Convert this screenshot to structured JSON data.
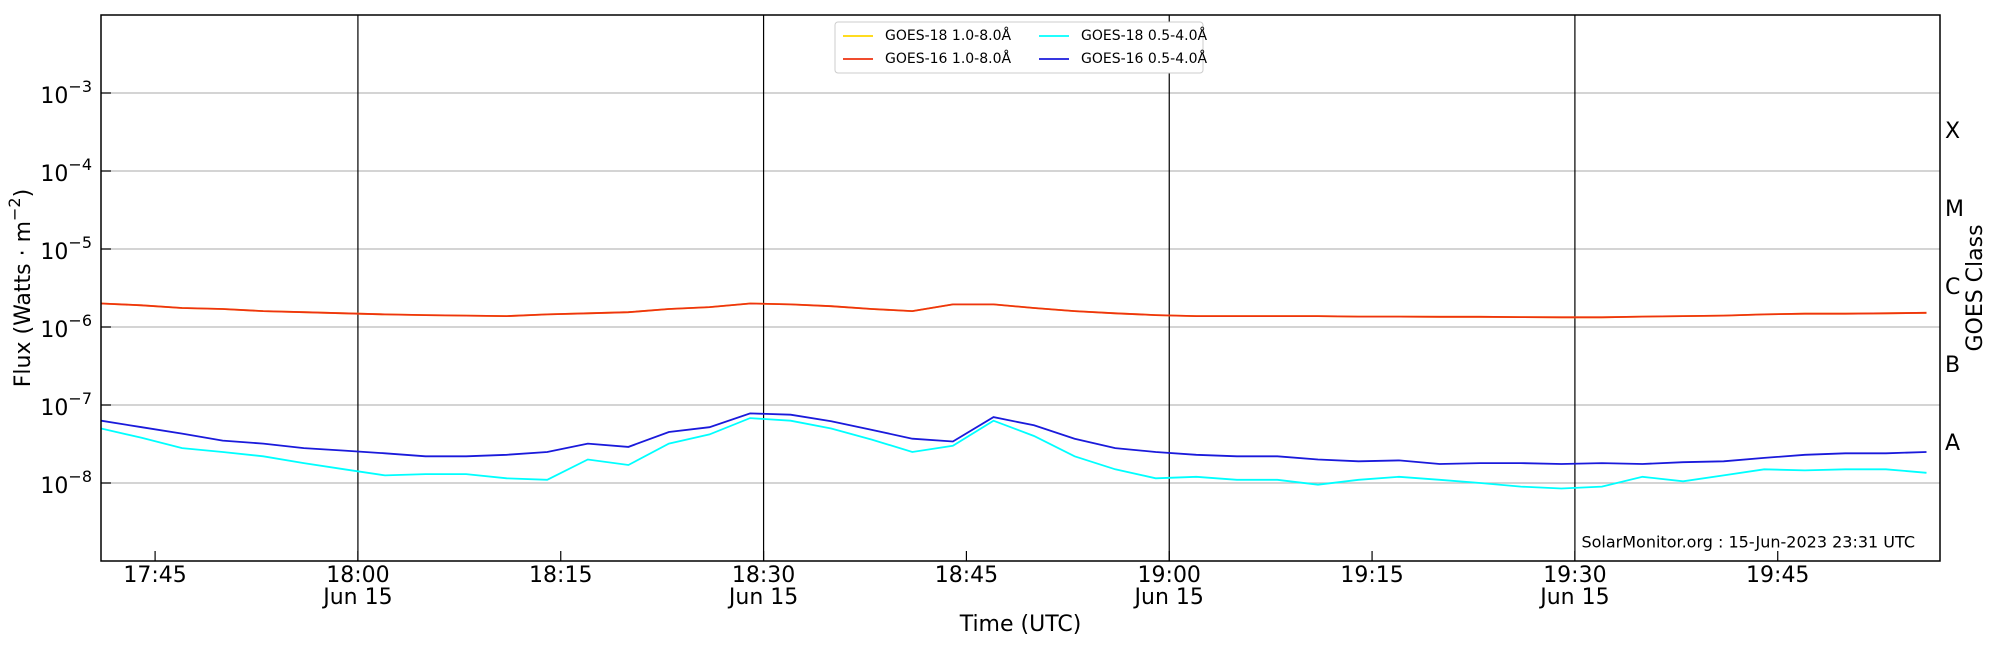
{
  "chart_data": {
    "type": "line",
    "log_y": true,
    "ylabel": {
      "text": "Flux (Watts · m",
      "exponent": "−2",
      "end": ")"
    },
    "xlabel": "Time (UTC)",
    "y2label": "GOES Class",
    "annotation": "SolarMonitor.org : 15-Jun-2023 23:31 UTC",
    "xlim": [
      "17:41",
      "19:57"
    ],
    "xticks": [
      "17:45",
      {
        "value": "18:00",
        "label": "18:00",
        "date": "Jun 15"
      },
      "18:15",
      {
        "value": "18:30",
        "label": "18:30",
        "date": "Jun 15"
      },
      "18:45",
      {
        "value": "19:00",
        "label": "19:00",
        "date": "Jun 15"
      },
      "19:15",
      {
        "value": "19:30",
        "label": "19:30",
        "date": "Jun 15"
      },
      "19:45"
    ],
    "x_date_gridlines": true,
    "ylim": [
      1e-09,
      0.01
    ],
    "yticks": [
      {
        "value": 1e-08,
        "base": "10",
        "exponent": "−8"
      },
      {
        "value": 1e-07,
        "base": "10",
        "exponent": "−7"
      },
      {
        "value": 1e-06,
        "base": "10",
        "exponent": "−6"
      },
      {
        "value": 1e-05,
        "base": "10",
        "exponent": "−5"
      },
      {
        "value": 0.0001,
        "base": "10",
        "exponent": "−4"
      },
      {
        "value": 0.001,
        "base": "10",
        "exponent": "−3"
      }
    ],
    "grid": true,
    "y2lim": [
      1e-09,
      0.01
    ],
    "y2ticks": [
      {
        "value": 3.162e-08,
        "label": "A"
      },
      {
        "value": 3.162e-07,
        "label": "B"
      },
      {
        "value": 3.162e-06,
        "label": "C"
      },
      {
        "value": 3.162e-05,
        "label": "M"
      },
      {
        "value": 0.0003162,
        "label": "X"
      }
    ],
    "legend": "top-center",
    "x": [
      "17:41",
      "17:44",
      "17:47",
      "17:50",
      "17:53",
      "17:56",
      "17:59",
      "18:02",
      "18:05",
      "18:08",
      "18:11",
      "18:14",
      "18:17",
      "18:20",
      "18:23",
      "18:26",
      "18:29",
      "18:32",
      "18:35",
      "18:38",
      "18:41",
      "18:44",
      "18:47",
      "18:50",
      "18:53",
      "18:56",
      "18:59",
      "19:02",
      "19:05",
      "19:08",
      "19:11",
      "19:14",
      "19:17",
      "19:20",
      "19:23",
      "19:26",
      "19:29",
      "19:32",
      "19:35",
      "19:38",
      "19:41",
      "19:44",
      "19:47",
      "19:50",
      "19:53",
      "19:56"
    ],
    "series": [
      {
        "name": "GOES-18 1.0-8.0Å",
        "color": "#ffd700",
        "values": [
          2e-06,
          1.9e-06,
          1.75e-06,
          1.7e-06,
          1.6e-06,
          1.55e-06,
          1.5e-06,
          1.45e-06,
          1.42e-06,
          1.4e-06,
          1.38e-06,
          1.45e-06,
          1.5e-06,
          1.55e-06,
          1.7e-06,
          1.8e-06,
          2e-06,
          1.95e-06,
          1.85e-06,
          1.7e-06,
          1.6e-06,
          1.95e-06,
          1.95e-06,
          1.75e-06,
          1.6e-06,
          1.5e-06,
          1.42e-06,
          1.38e-06,
          1.38e-06,
          1.38e-06,
          1.38e-06,
          1.36e-06,
          1.36e-06,
          1.35e-06,
          1.35e-06,
          1.34e-06,
          1.33e-06,
          1.33e-06,
          1.36e-06,
          1.38e-06,
          1.4e-06,
          1.45e-06,
          1.48e-06,
          1.48e-06,
          1.5e-06,
          1.52e-06
        ]
      },
      {
        "name": "GOES-16 1.0-8.0Å",
        "color": "#ee3311",
        "values": [
          2e-06,
          1.9e-06,
          1.75e-06,
          1.7e-06,
          1.6e-06,
          1.55e-06,
          1.5e-06,
          1.45e-06,
          1.42e-06,
          1.4e-06,
          1.38e-06,
          1.45e-06,
          1.5e-06,
          1.55e-06,
          1.7e-06,
          1.8e-06,
          2e-06,
          1.95e-06,
          1.85e-06,
          1.7e-06,
          1.6e-06,
          1.95e-06,
          1.95e-06,
          1.75e-06,
          1.6e-06,
          1.5e-06,
          1.42e-06,
          1.38e-06,
          1.38e-06,
          1.38e-06,
          1.38e-06,
          1.36e-06,
          1.36e-06,
          1.35e-06,
          1.35e-06,
          1.34e-06,
          1.33e-06,
          1.33e-06,
          1.36e-06,
          1.38e-06,
          1.4e-06,
          1.45e-06,
          1.48e-06,
          1.48e-06,
          1.5e-06,
          1.52e-06
        ]
      },
      {
        "name": "GOES-18 0.5-4.0Å",
        "color": "#00ffff",
        "values": [
          5e-08,
          3.8e-08,
          2.8e-08,
          2.5e-08,
          2.2e-08,
          1.8e-08,
          1.5e-08,
          1.25e-08,
          1.3e-08,
          1.3e-08,
          1.15e-08,
          1.1e-08,
          2e-08,
          1.7e-08,
          3.2e-08,
          4.2e-08,
          6.8e-08,
          6.3e-08,
          5e-08,
          3.6e-08,
          2.5e-08,
          3e-08,
          6.3e-08,
          4e-08,
          2.2e-08,
          1.5e-08,
          1.15e-08,
          1.2e-08,
          1.1e-08,
          1.1e-08,
          9.5e-09,
          1.1e-08,
          1.2e-08,
          1.1e-08,
          1e-08,
          9e-09,
          8.5e-09,
          9e-09,
          1.2e-08,
          1.05e-08,
          1.25e-08,
          1.5e-08,
          1.45e-08,
          1.5e-08,
          1.5e-08,
          1.35e-08
        ]
      },
      {
        "name": "GOES-16 0.5-4.0Å",
        "color": "#1a1adb",
        "values": [
          6.3e-08,
          5.2e-08,
          4.3e-08,
          3.5e-08,
          3.2e-08,
          2.8e-08,
          2.6e-08,
          2.4e-08,
          2.2e-08,
          2.2e-08,
          2.3e-08,
          2.5e-08,
          3.2e-08,
          2.9e-08,
          4.5e-08,
          5.2e-08,
          7.8e-08,
          7.5e-08,
          6.2e-08,
          4.8e-08,
          3.7e-08,
          3.4e-08,
          7e-08,
          5.5e-08,
          3.7e-08,
          2.8e-08,
          2.5e-08,
          2.3e-08,
          2.2e-08,
          2.2e-08,
          2e-08,
          1.9e-08,
          1.95e-08,
          1.75e-08,
          1.8e-08,
          1.8e-08,
          1.75e-08,
          1.8e-08,
          1.75e-08,
          1.85e-08,
          1.9e-08,
          2.1e-08,
          2.3e-08,
          2.4e-08,
          2.4e-08,
          2.5e-08
        ]
      }
    ]
  }
}
